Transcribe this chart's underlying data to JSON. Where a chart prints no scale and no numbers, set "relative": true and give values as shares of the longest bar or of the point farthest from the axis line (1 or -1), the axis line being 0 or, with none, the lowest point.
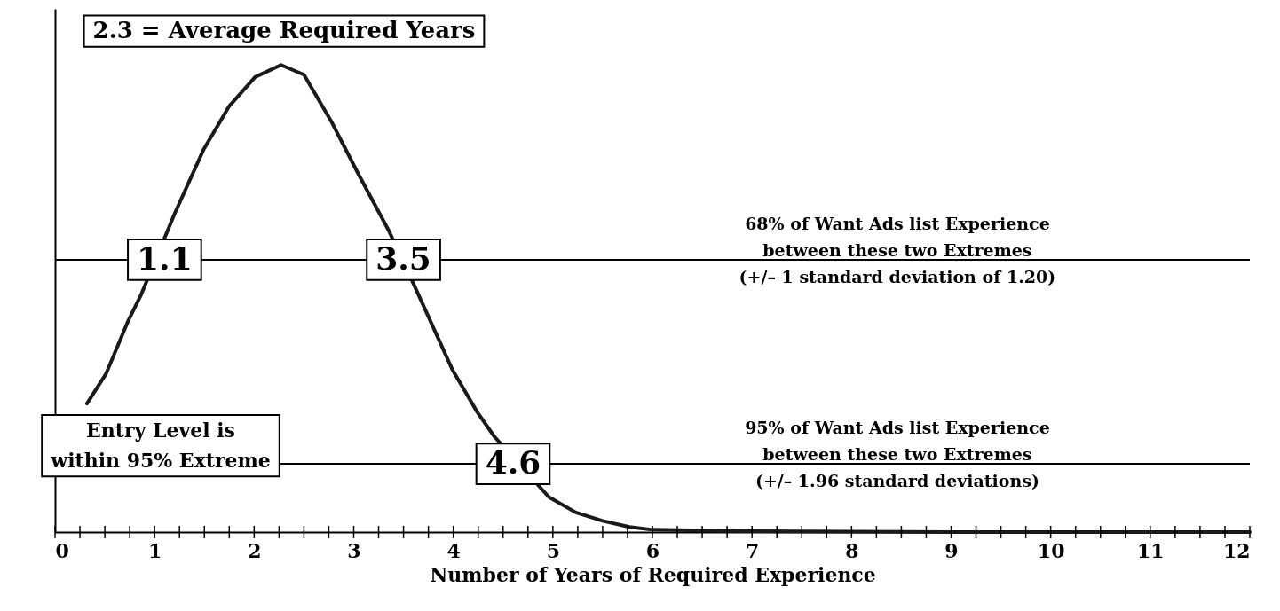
{
  "chart_data": {
    "type": "line",
    "relative": true,
    "xlabel": "Number of Years of Required Experience",
    "xlim": [
      0,
      12
    ],
    "xticks": [
      0,
      {
        "value": 0.25,
        "label": null
      },
      {
        "value": 0.5,
        "label": null
      },
      {
        "value": 0.75,
        "label": null
      },
      1,
      {
        "value": 1.25,
        "label": null
      },
      {
        "value": 1.5,
        "label": null
      },
      {
        "value": 1.75,
        "label": null
      },
      2,
      {
        "value": 2.25,
        "label": null
      },
      {
        "value": 2.5,
        "label": null
      },
      {
        "value": 2.75,
        "label": null
      },
      3,
      {
        "value": 3.25,
        "label": null
      },
      {
        "value": 3.5,
        "label": null
      },
      {
        "value": 3.75,
        "label": null
      },
      4,
      {
        "value": 4.25,
        "label": null
      },
      {
        "value": 4.5,
        "label": null
      },
      {
        "value": 4.75,
        "label": null
      },
      5,
      {
        "value": 5.25,
        "label": null
      },
      {
        "value": 5.5,
        "label": null
      },
      {
        "value": 5.75,
        "label": null
      },
      6,
      {
        "value": 6.25,
        "label": null
      },
      {
        "value": 6.5,
        "label": null
      },
      {
        "value": 6.75,
        "label": null
      },
      7,
      {
        "value": 7.25,
        "label": null
      },
      {
        "value": 7.5,
        "label": null
      },
      {
        "value": 7.75,
        "label": null
      },
      8,
      {
        "value": 8.25,
        "label": null
      },
      {
        "value": 8.5,
        "label": null
      },
      {
        "value": 8.75,
        "label": null
      },
      9,
      {
        "value": 9.25,
        "label": null
      },
      {
        "value": 9.5,
        "label": null
      },
      {
        "value": 9.75,
        "label": null
      },
      10,
      {
        "value": 10.25,
        "label": null
      },
      {
        "value": 10.5,
        "label": null
      },
      {
        "value": 10.75,
        "label": null
      },
      11,
      {
        "value": 11.25,
        "label": null
      },
      {
        "value": 11.5,
        "label": null
      },
      {
        "value": 11.75,
        "label": null
      },
      12
    ],
    "x": [
      0.32,
      0.51,
      0.73,
      0.86,
      1.2,
      1.49,
      1.75,
      2.01,
      2.27,
      2.5,
      2.77,
      3.05,
      3.35,
      3.61,
      3.99,
      4.24,
      4.41,
      4.96,
      5.23,
      5.5,
      5.77,
      6.0,
      7.0,
      8.0,
      9.0,
      10.0,
      11.0,
      12.0
    ],
    "series": [
      {
        "color": "#1a1a1a",
        "values": [
          0.275,
          0.338,
          0.45,
          0.506,
          0.681,
          0.818,
          0.912,
          0.974,
          1,
          0.979,
          0.881,
          0.765,
          0.646,
          0.527,
          0.348,
          0.257,
          0.205,
          0.075,
          0.042,
          0.024,
          0.011,
          0.005,
          0.002,
          0.001,
          0,
          0,
          0,
          0
        ]
      }
    ],
    "line_style": "solid",
    "ref_lines": [
      {
        "axis": "y",
        "value": 0.583,
        "label": "68% of Want Ads list Experience\nbetween these two Extremes\n(+/– 1 standard deviation of  1.20)"
      },
      {
        "axis": "y",
        "value": 0.146,
        "label": "95% of Want Ads list Experience\nbetween these two Extremes\n(+/– 1.96 standard deviations)"
      }
    ],
    "annotations": [
      {
        "text": "2.3 = Average Required Years",
        "x": 2.3,
        "y": 1
      },
      {
        "text": "1.1",
        "x": 1.1,
        "y": 0.583
      },
      {
        "text": "3.5",
        "x": 3.5,
        "y": 0.583
      },
      {
        "text": "4.6",
        "x": 4.6,
        "y": 0.146
      },
      "Entry Level is\nwithin 95% Extreme"
    ]
  }
}
